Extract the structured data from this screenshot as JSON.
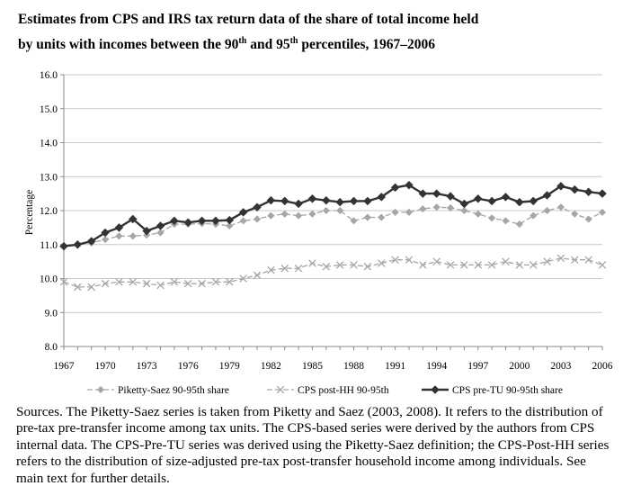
{
  "title": {
    "line1": "Estimates from CPS and IRS tax return data of the share of total income held",
    "line2_before_90": "by units with incomes between the 90",
    "sup_90": "th",
    "line2_middle": " and 95",
    "sup_95": "th",
    "line2_after": " percentiles, 1967–2006"
  },
  "chart_data": {
    "type": "line",
    "title": "Estimates from CPS and IRS tax return data of the share of total income held by units with incomes between the 90th and 95th percentiles, 1967–2006",
    "xlabel": "",
    "ylabel": "Percentage",
    "xlim": [
      1967,
      2006
    ],
    "ylim": [
      8.0,
      16.0
    ],
    "y_ticks": [
      "8.0",
      "9.0",
      "10.0",
      "11.0",
      "12.0",
      "13.0",
      "14.0",
      "15.0",
      "16.0"
    ],
    "x_ticks": [
      "1967",
      "1970",
      "1973",
      "1976",
      "1979",
      "1982",
      "1985",
      "1988",
      "1991",
      "1994",
      "1997",
      "2000",
      "2003",
      "2006"
    ],
    "grid": "horizontal",
    "legend_position": "bottom",
    "x": [
      1967,
      1968,
      1969,
      1970,
      1971,
      1972,
      1973,
      1974,
      1975,
      1976,
      1977,
      1978,
      1979,
      1980,
      1981,
      1982,
      1983,
      1984,
      1985,
      1986,
      1987,
      1988,
      1989,
      1990,
      1991,
      1992,
      1993,
      1994,
      1995,
      1996,
      1997,
      1998,
      1999,
      2000,
      2001,
      2002,
      2003,
      2004,
      2005,
      2006
    ],
    "series": [
      {
        "name": "Piketty-Saez 90-95th share",
        "color": "#a6a6a6",
        "style": "dashed",
        "marker": "diamond",
        "values": [
          10.95,
          11.0,
          11.05,
          11.15,
          11.25,
          11.25,
          11.28,
          11.35,
          11.6,
          11.6,
          11.62,
          11.6,
          11.55,
          11.7,
          11.75,
          11.85,
          11.9,
          11.85,
          11.9,
          12.0,
          12.0,
          11.7,
          11.8,
          11.8,
          11.95,
          11.95,
          12.05,
          12.1,
          12.08,
          12.0,
          11.9,
          11.78,
          11.7,
          11.6,
          11.85,
          12.0,
          12.1,
          11.9,
          11.75,
          11.95
        ]
      },
      {
        "name": "CPS post-HH 90-95th",
        "color": "#a6a6a6",
        "style": "dashed",
        "marker": "x",
        "values": [
          9.9,
          9.75,
          9.75,
          9.85,
          9.9,
          9.9,
          9.85,
          9.8,
          9.9,
          9.85,
          9.85,
          9.9,
          9.9,
          10.0,
          10.1,
          10.25,
          10.3,
          10.3,
          10.45,
          10.35,
          10.4,
          10.4,
          10.35,
          10.45,
          10.55,
          10.55,
          10.4,
          10.5,
          10.4,
          10.4,
          10.4,
          10.4,
          10.5,
          10.4,
          10.4,
          10.5,
          10.6,
          10.55,
          10.55,
          10.4
        ]
      },
      {
        "name": "CPS pre-TU 90-95th share",
        "color": "#333333",
        "style": "solid",
        "marker": "diamond",
        "values": [
          10.95,
          11.0,
          11.1,
          11.35,
          11.5,
          11.75,
          11.4,
          11.55,
          11.7,
          11.65,
          11.7,
          11.7,
          11.72,
          11.95,
          12.1,
          12.3,
          12.28,
          12.2,
          12.35,
          12.3,
          12.25,
          12.28,
          12.28,
          12.4,
          12.68,
          12.75,
          12.5,
          12.5,
          12.42,
          12.2,
          12.35,
          12.28,
          12.4,
          12.25,
          12.28,
          12.45,
          12.72,
          12.62,
          12.55,
          12.5
        ]
      }
    ]
  },
  "sources": "Sources. The Piketty-Saez series is taken from Piketty and Saez (2003, 2008). It refers to the distribution of pre-tax pre-transfer income among tax units. The CPS-based series were derived by the authors from CPS internal data. The CPS-Pre-TU series was derived using the Piketty-Saez definition; the CPS-Post-HH series refers to the distribution of size-adjusted pre-tax post-transfer household income among individuals. See main text for further details."
}
